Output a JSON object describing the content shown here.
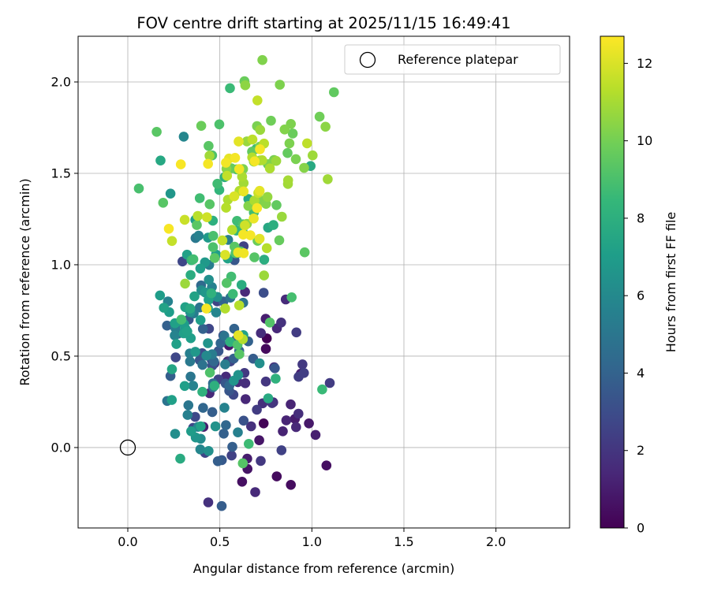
{
  "chart_data": {
    "type": "scatter",
    "title": "FOV centre drift starting at 2025/11/15 16:49:41",
    "xlabel": "Angular distance from reference (arcmin)",
    "ylabel": "Rotation from reference (arcmin)",
    "xlim": [
      -0.27,
      2.4
    ],
    "ylim": [
      -0.44,
      2.25
    ],
    "xticks": [
      0.0,
      0.5,
      1.0,
      1.5,
      2.0
    ],
    "xtick_labels": [
      "0.0",
      "0.5",
      "1.0",
      "1.5",
      "2.0"
    ],
    "yticks": [
      0.0,
      0.5,
      1.0,
      1.5,
      2.0
    ],
    "ytick_labels": [
      "0.0",
      "0.5",
      "1.0",
      "1.5",
      "2.0"
    ],
    "grid": true,
    "colorbar": {
      "label": "Hours from first FF file",
      "range": [
        0,
        12.7
      ],
      "ticks": [
        0,
        2,
        4,
        6,
        8,
        10,
        12
      ],
      "tick_labels": [
        "0",
        "2",
        "4",
        "6",
        "8",
        "10",
        "12"
      ],
      "colormap": "viridis"
    },
    "legend": {
      "label": "Reference platepar",
      "placement": "top-right"
    },
    "reference_point": {
      "x": 0.0,
      "y": 0.0,
      "label": "Reference platepar"
    },
    "series": [
      {
        "name": "FOV centre drift",
        "x": [],
        "y": [],
        "hours": []
      }
    ]
  }
}
